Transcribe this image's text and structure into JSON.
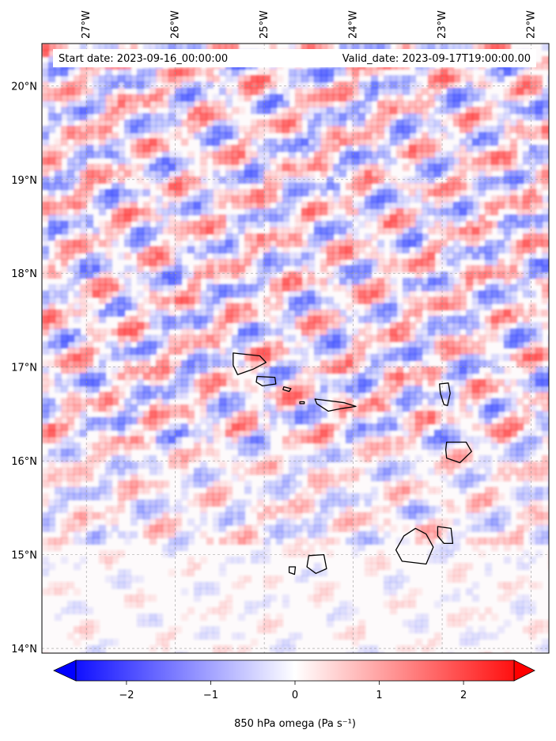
{
  "map": {
    "start_date_label": "Start date: 2023-09-16_00:00:00",
    "valid_date_label": "Valid_date: 2023-09-17T19:00:00.00",
    "lon_ticks": [
      {
        "lon": -27,
        "label": "27°W"
      },
      {
        "lon": -26,
        "label": "26°W"
      },
      {
        "lon": -25,
        "label": "25°W"
      },
      {
        "lon": -24,
        "label": "24°W"
      },
      {
        "lon": -23,
        "label": "23°W"
      },
      {
        "lon": -22,
        "label": "22°W"
      }
    ],
    "lat_ticks": [
      {
        "lat": 20,
        "label": "20°N"
      },
      {
        "lat": 19,
        "label": "19°N"
      },
      {
        "lat": 18,
        "label": "18°N"
      },
      {
        "lat": 17,
        "label": "17°N"
      },
      {
        "lat": 16,
        "label": "16°N"
      },
      {
        "lat": 15,
        "label": "15°N"
      },
      {
        "lat": 14,
        "label": "14°N"
      }
    ],
    "lon_range": [
      -27.5,
      -21.8
    ],
    "lat_range": [
      13.95,
      20.45
    ],
    "gridlines": true,
    "field": "850 hPa omega",
    "islands": [
      "Santo Antão",
      "São Vicente",
      "Santa Luzia",
      "São Nicolau",
      "Sal",
      "Boa Vista",
      "Maio",
      "Santiago",
      "Fogo",
      "Brava"
    ]
  },
  "colorbar": {
    "label": "850 hPa omega (Pa s⁻¹)",
    "range": [
      -2.6,
      2.6
    ],
    "colormap": "bwr",
    "extend": "both",
    "ticks": [
      {
        "value": -2,
        "label": "−2"
      },
      {
        "value": -1,
        "label": "−1"
      },
      {
        "value": 0,
        "label": "0"
      },
      {
        "value": 1,
        "label": "1"
      },
      {
        "value": 2,
        "label": "2"
      }
    ],
    "color_low": "#0000ff",
    "color_mid": "#ffffff",
    "color_high": "#ff0000"
  }
}
